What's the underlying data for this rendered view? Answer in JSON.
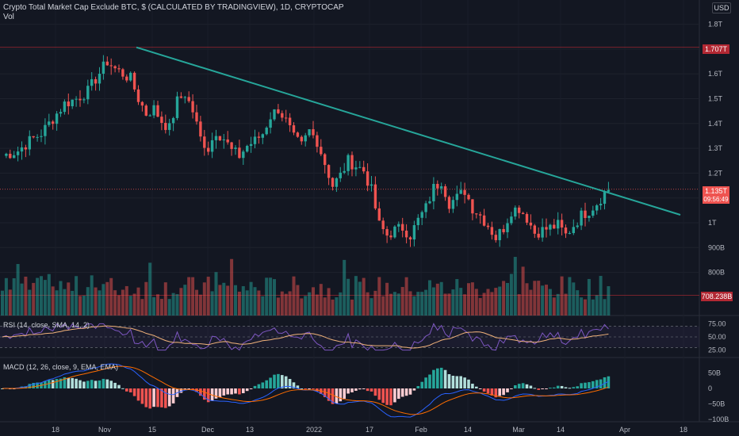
{
  "header": {
    "title": "Crypto Total Market Cap Exclude BTC, $ (CALCULATED BY TRADINGVIEW), 1D, CRYPTOCAP",
    "sub": "Vol",
    "currency_button": "USD"
  },
  "colors": {
    "background": "#131722",
    "up": "#26a69a",
    "down": "#ef5350",
    "trendline": "#26a69a",
    "rsi_line": "#7e57c2",
    "rsi_ma": "#f0b27a",
    "macd_line": "#2962ff",
    "signal_line": "#ff6d00"
  },
  "price_labels": {
    "high": "1.707T",
    "last_price": "1.135T",
    "countdown": "09:56:49",
    "low_line": "708.238B"
  },
  "panes": {
    "rsi_title": "RSI (14, close, SMA, 14, 2)",
    "macd_title": "MACD (12, 26, close, 9, EMA, EMA)"
  },
  "chart_data": [
    {
      "type": "candlestick",
      "title": "Crypto Total Market Cap Exclude BTC, $ (CALCULATED BY TRADINGVIEW), 1D, CRYPTOCAP",
      "y_ticks": [
        "1.8T",
        "1.7T",
        "1.6T",
        "1.5T",
        "1.4T",
        "1.3T",
        "1.2T",
        "1.1T",
        "1T",
        "900B",
        "800B"
      ],
      "y_tick_values": [
        1.8,
        1.7,
        1.6,
        1.5,
        1.4,
        1.3,
        1.2,
        1.1,
        1.0,
        0.9,
        0.8
      ],
      "x_ticks": [
        "18",
        "Nov",
        "15",
        "Dec",
        "13",
        "2022",
        "17",
        "Feb",
        "14",
        "Mar",
        "14",
        "Apr",
        "18"
      ],
      "ylim": [
        0.72,
        1.82
      ],
      "unit": "T",
      "close_path": [
        [
          0,
          1.27
        ],
        [
          4,
          1.29
        ],
        [
          7,
          1.33
        ],
        [
          10,
          1.36
        ],
        [
          13,
          1.42
        ],
        [
          16,
          1.48
        ],
        [
          19,
          1.5
        ],
        [
          22,
          1.53
        ],
        [
          24,
          1.58
        ],
        [
          27,
          1.65
        ],
        [
          29,
          1.62
        ],
        [
          31,
          1.6
        ],
        [
          33,
          1.58
        ],
        [
          35,
          1.5
        ],
        [
          37,
          1.44
        ],
        [
          39,
          1.46
        ],
        [
          41,
          1.41
        ],
        [
          43,
          1.38
        ],
        [
          45,
          1.49
        ],
        [
          47,
          1.52
        ],
        [
          49,
          1.45
        ],
        [
          51,
          1.34
        ],
        [
          53,
          1.3
        ],
        [
          55,
          1.37
        ],
        [
          57,
          1.34
        ],
        [
          59,
          1.29
        ],
        [
          61,
          1.27
        ],
        [
          63,
          1.31
        ],
        [
          65,
          1.33
        ],
        [
          67,
          1.36
        ],
        [
          69,
          1.43
        ],
        [
          71,
          1.46
        ],
        [
          73,
          1.41
        ],
        [
          75,
          1.34
        ],
        [
          77,
          1.31
        ],
        [
          79,
          1.37
        ],
        [
          81,
          1.33
        ],
        [
          83,
          1.24
        ],
        [
          85,
          1.15
        ],
        [
          87,
          1.19
        ],
        [
          89,
          1.25
        ],
        [
          91,
          1.23
        ],
        [
          93,
          1.21
        ],
        [
          95,
          1.13
        ],
        [
          97,
          0.99
        ],
        [
          99,
          0.95
        ],
        [
          101,
          0.97
        ],
        [
          103,
          0.98
        ],
        [
          105,
          0.95
        ],
        [
          107,
          1.01
        ],
        [
          109,
          1.06
        ],
        [
          111,
          1.14
        ],
        [
          113,
          1.17
        ],
        [
          115,
          1.08
        ],
        [
          117,
          1.1
        ],
        [
          119,
          1.13
        ],
        [
          121,
          1.06
        ],
        [
          123,
          1.03
        ],
        [
          125,
          0.99
        ],
        [
          127,
          0.94
        ],
        [
          129,
          0.98
        ],
        [
          131,
          1.05
        ],
        [
          133,
          1.06
        ],
        [
          135,
          1.02
        ],
        [
          137,
          0.96
        ],
        [
          139,
          0.97
        ],
        [
          141,
          0.98
        ],
        [
          143,
          0.99
        ],
        [
          145,
          0.95
        ],
        [
          147,
          0.99
        ],
        [
          149,
          1.03
        ],
        [
          151,
          1.05
        ],
        [
          153,
          1.08
        ],
        [
          155,
          1.12
        ],
        [
          156,
          1.135
        ]
      ],
      "lines": [
        {
          "label": "1.707T",
          "value": 1.707
        },
        {
          "label": "1.135T",
          "value": 1.135
        },
        {
          "label": "708.238B",
          "value": 0.708238
        }
      ]
    },
    {
      "type": "line",
      "title": "RSI (14, close, SMA, 14, 2)",
      "y_ticks": [
        "75.00",
        "50.00",
        "25.00"
      ],
      "y_tick_values": [
        75,
        50,
        25
      ],
      "ylim": [
        20,
        80
      ],
      "bands": [
        70,
        30
      ]
    },
    {
      "type": "bar",
      "title": "MACD (12, 26, close, 9, EMA, EMA)",
      "y_ticks": [
        "50B",
        "0",
        "−50B",
        "−100B"
      ],
      "y_tick_values": [
        50,
        0,
        -50,
        -100
      ],
      "ylim": [
        -110,
        65
      ]
    }
  ]
}
